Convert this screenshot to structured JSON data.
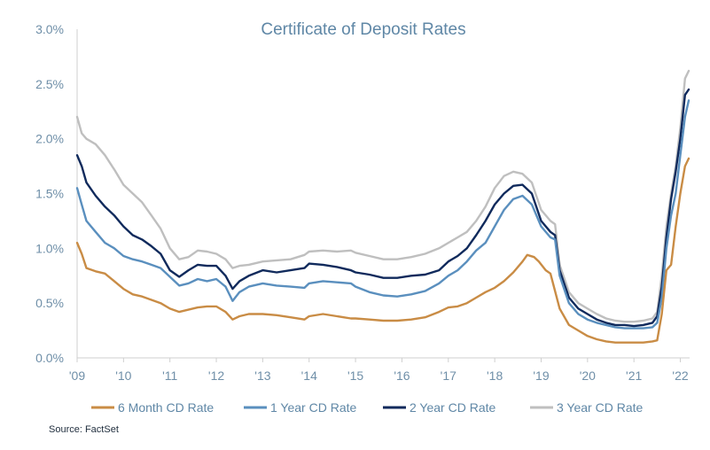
{
  "chart_data": {
    "type": "line",
    "title": "Certificate of Deposit Rates",
    "xlabel": "",
    "ylabel": "",
    "x_tick_labels": [
      "'09",
      "'10",
      "'11",
      "'12",
      "'13",
      "'14",
      "'15",
      "'16",
      "'17",
      "'18",
      "'19",
      "'20",
      "'21",
      "'22"
    ],
    "y_tick_labels": [
      "0.0%",
      "0.5%",
      "1.0%",
      "1.5%",
      "2.0%",
      "2.5%",
      "3.0%"
    ],
    "ylim": [
      0,
      3.0
    ],
    "xlim": [
      2009.0,
      2022.2
    ],
    "grid": false,
    "legend_position": "bottom",
    "source": "Source: FactSet",
    "series": [
      {
        "name": "6 Month CD Rate",
        "color": "#c98c45",
        "x": [
          2009.0,
          2009.1,
          2009.2,
          2009.4,
          2009.6,
          2009.8,
          2010.0,
          2010.2,
          2010.4,
          2010.6,
          2010.8,
          2011.0,
          2011.2,
          2011.4,
          2011.6,
          2011.8,
          2012.0,
          2012.2,
          2012.35,
          2012.5,
          2012.7,
          2013.0,
          2013.3,
          2013.6,
          2013.9,
          2014.0,
          2014.3,
          2014.6,
          2014.9,
          2015.0,
          2015.3,
          2015.6,
          2015.9,
          2016.2,
          2016.5,
          2016.8,
          2017.0,
          2017.2,
          2017.4,
          2017.6,
          2017.8,
          2018.0,
          2018.2,
          2018.4,
          2018.6,
          2018.7,
          2018.85,
          2018.95,
          2019.1,
          2019.2,
          2019.4,
          2019.6,
          2019.8,
          2020.0,
          2020.2,
          2020.4,
          2020.6,
          2020.8,
          2021.0,
          2021.2,
          2021.4,
          2021.5,
          2021.6,
          2021.7,
          2021.8,
          2021.9,
          2022.0,
          2022.1,
          2022.18
        ],
        "values": [
          1.05,
          0.95,
          0.82,
          0.79,
          0.77,
          0.7,
          0.63,
          0.58,
          0.56,
          0.53,
          0.5,
          0.45,
          0.42,
          0.44,
          0.46,
          0.47,
          0.47,
          0.42,
          0.35,
          0.38,
          0.4,
          0.4,
          0.39,
          0.37,
          0.35,
          0.38,
          0.4,
          0.38,
          0.36,
          0.36,
          0.35,
          0.34,
          0.34,
          0.35,
          0.37,
          0.42,
          0.46,
          0.47,
          0.5,
          0.55,
          0.6,
          0.64,
          0.7,
          0.78,
          0.88,
          0.94,
          0.92,
          0.88,
          0.8,
          0.77,
          0.45,
          0.3,
          0.25,
          0.2,
          0.17,
          0.15,
          0.14,
          0.14,
          0.14,
          0.14,
          0.15,
          0.16,
          0.4,
          0.8,
          0.85,
          1.2,
          1.5,
          1.75,
          1.82
        ]
      },
      {
        "name": "1 Year CD Rate",
        "color": "#5a8fbe",
        "x": [
          2009.0,
          2009.1,
          2009.2,
          2009.4,
          2009.6,
          2009.8,
          2010.0,
          2010.2,
          2010.4,
          2010.6,
          2010.8,
          2011.0,
          2011.2,
          2011.4,
          2011.6,
          2011.8,
          2012.0,
          2012.2,
          2012.35,
          2012.5,
          2012.7,
          2013.0,
          2013.3,
          2013.6,
          2013.9,
          2014.0,
          2014.3,
          2014.6,
          2014.9,
          2015.0,
          2015.3,
          2015.6,
          2015.9,
          2016.2,
          2016.5,
          2016.8,
          2017.0,
          2017.2,
          2017.4,
          2017.6,
          2017.8,
          2018.0,
          2018.2,
          2018.4,
          2018.6,
          2018.8,
          2019.0,
          2019.2,
          2019.3,
          2019.4,
          2019.6,
          2019.8,
          2020.0,
          2020.2,
          2020.4,
          2020.6,
          2020.8,
          2021.0,
          2021.2,
          2021.4,
          2021.5,
          2021.6,
          2021.7,
          2021.8,
          2021.9,
          2022.0,
          2022.1,
          2022.18
        ],
        "values": [
          1.55,
          1.4,
          1.25,
          1.15,
          1.05,
          1.0,
          0.93,
          0.9,
          0.88,
          0.85,
          0.82,
          0.74,
          0.66,
          0.68,
          0.72,
          0.7,
          0.72,
          0.65,
          0.52,
          0.6,
          0.65,
          0.68,
          0.66,
          0.65,
          0.64,
          0.68,
          0.7,
          0.69,
          0.68,
          0.65,
          0.6,
          0.57,
          0.56,
          0.58,
          0.61,
          0.68,
          0.75,
          0.8,
          0.88,
          0.98,
          1.05,
          1.2,
          1.35,
          1.45,
          1.48,
          1.4,
          1.2,
          1.1,
          1.08,
          0.75,
          0.5,
          0.4,
          0.35,
          0.32,
          0.3,
          0.28,
          0.27,
          0.27,
          0.27,
          0.28,
          0.32,
          0.55,
          1.0,
          1.3,
          1.5,
          1.85,
          2.2,
          2.35
        ]
      },
      {
        "name": "2 Year CD Rate",
        "color": "#102a5c",
        "x": [
          2009.0,
          2009.1,
          2009.2,
          2009.4,
          2009.6,
          2009.8,
          2010.0,
          2010.2,
          2010.4,
          2010.6,
          2010.8,
          2011.0,
          2011.2,
          2011.4,
          2011.6,
          2011.8,
          2012.0,
          2012.2,
          2012.35,
          2012.5,
          2012.7,
          2013.0,
          2013.3,
          2013.6,
          2013.9,
          2014.0,
          2014.3,
          2014.6,
          2014.9,
          2015.0,
          2015.3,
          2015.6,
          2015.9,
          2016.2,
          2016.5,
          2016.8,
          2017.0,
          2017.2,
          2017.4,
          2017.6,
          2017.8,
          2018.0,
          2018.2,
          2018.4,
          2018.6,
          2018.8,
          2019.0,
          2019.2,
          2019.3,
          2019.4,
          2019.6,
          2019.8,
          2020.0,
          2020.2,
          2020.4,
          2020.6,
          2020.8,
          2021.0,
          2021.2,
          2021.4,
          2021.5,
          2021.6,
          2021.7,
          2021.8,
          2021.9,
          2022.0,
          2022.1,
          2022.18
        ],
        "values": [
          1.85,
          1.75,
          1.6,
          1.48,
          1.38,
          1.3,
          1.2,
          1.12,
          1.08,
          1.02,
          0.95,
          0.8,
          0.74,
          0.8,
          0.85,
          0.84,
          0.84,
          0.75,
          0.63,
          0.7,
          0.75,
          0.8,
          0.78,
          0.8,
          0.82,
          0.86,
          0.85,
          0.83,
          0.8,
          0.78,
          0.76,
          0.73,
          0.73,
          0.75,
          0.76,
          0.8,
          0.88,
          0.93,
          1.0,
          1.12,
          1.25,
          1.4,
          1.5,
          1.57,
          1.58,
          1.5,
          1.25,
          1.15,
          1.12,
          0.8,
          0.55,
          0.45,
          0.4,
          0.35,
          0.32,
          0.3,
          0.3,
          0.29,
          0.3,
          0.32,
          0.38,
          0.65,
          1.1,
          1.45,
          1.7,
          2.0,
          2.4,
          2.45
        ]
      },
      {
        "name": "3 Year CD Rate",
        "color": "#bfbfbf",
        "x": [
          2009.0,
          2009.1,
          2009.2,
          2009.4,
          2009.6,
          2009.8,
          2010.0,
          2010.2,
          2010.4,
          2010.6,
          2010.8,
          2011.0,
          2011.2,
          2011.4,
          2011.6,
          2011.8,
          2012.0,
          2012.2,
          2012.35,
          2012.5,
          2012.7,
          2013.0,
          2013.3,
          2013.6,
          2013.9,
          2014.0,
          2014.3,
          2014.6,
          2014.9,
          2015.0,
          2015.3,
          2015.6,
          2015.9,
          2016.2,
          2016.5,
          2016.8,
          2017.0,
          2017.2,
          2017.4,
          2017.6,
          2017.8,
          2018.0,
          2018.2,
          2018.4,
          2018.6,
          2018.8,
          2019.0,
          2019.2,
          2019.3,
          2019.4,
          2019.6,
          2019.8,
          2020.0,
          2020.2,
          2020.4,
          2020.6,
          2020.8,
          2021.0,
          2021.2,
          2021.4,
          2021.5,
          2021.6,
          2021.7,
          2021.8,
          2021.9,
          2022.0,
          2022.1,
          2022.18
        ],
        "values": [
          2.2,
          2.05,
          2.0,
          1.95,
          1.85,
          1.72,
          1.58,
          1.5,
          1.42,
          1.3,
          1.18,
          1.0,
          0.9,
          0.92,
          0.98,
          0.97,
          0.95,
          0.9,
          0.82,
          0.84,
          0.85,
          0.88,
          0.89,
          0.9,
          0.94,
          0.97,
          0.98,
          0.97,
          0.98,
          0.96,
          0.93,
          0.9,
          0.9,
          0.92,
          0.95,
          1.0,
          1.05,
          1.1,
          1.15,
          1.25,
          1.38,
          1.55,
          1.66,
          1.7,
          1.68,
          1.6,
          1.35,
          1.25,
          1.22,
          0.85,
          0.6,
          0.5,
          0.45,
          0.4,
          0.36,
          0.34,
          0.33,
          0.33,
          0.34,
          0.36,
          0.42,
          0.75,
          1.2,
          1.5,
          1.75,
          2.1,
          2.55,
          2.62
        ]
      }
    ]
  }
}
